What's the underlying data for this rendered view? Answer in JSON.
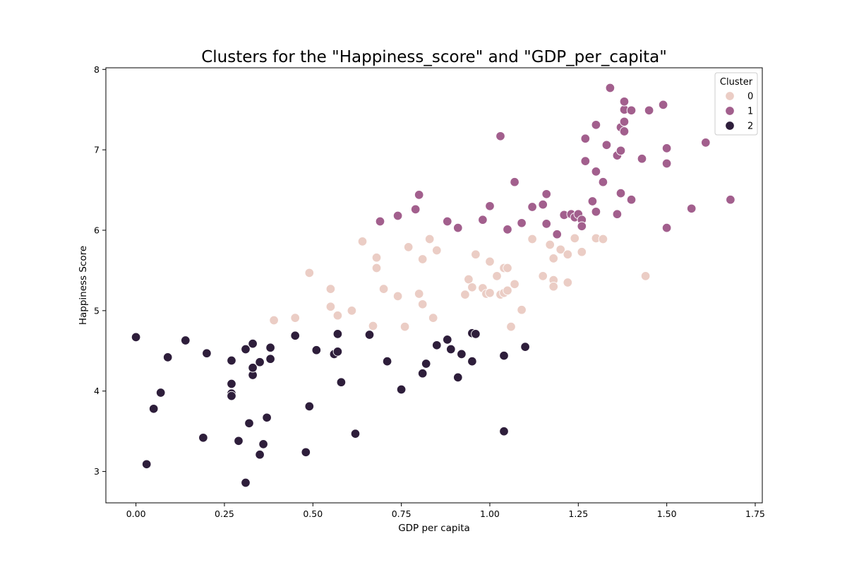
{
  "chart_data": {
    "type": "scatter",
    "title": "Clusters for the \"Happiness_score\" and \"GDP_per_capita\"",
    "xlabel": "GDP per capita",
    "ylabel": "Happiness Score",
    "xlim": [
      -0.085,
      1.77
    ],
    "ylim": [
      2.61,
      8.02
    ],
    "xticks": [
      "0.00",
      "0.25",
      "0.50",
      "0.75",
      "1.00",
      "1.25",
      "1.50",
      "1.75"
    ],
    "yticks": [
      "3",
      "4",
      "5",
      "6",
      "7",
      "8"
    ],
    "grid": false,
    "legend": {
      "title": "Cluster",
      "placement": "top-right"
    },
    "series": [
      {
        "name": "0",
        "color": "#ebcdc5",
        "points": [
          [
            0.39,
            4.88
          ],
          [
            0.45,
            4.91
          ],
          [
            0.49,
            5.47
          ],
          [
            0.55,
            5.05
          ],
          [
            0.55,
            5.27
          ],
          [
            0.57,
            4.94
          ],
          [
            0.61,
            5.0
          ],
          [
            0.64,
            5.86
          ],
          [
            0.67,
            4.81
          ],
          [
            0.68,
            5.66
          ],
          [
            0.68,
            5.53
          ],
          [
            0.7,
            5.27
          ],
          [
            0.74,
            5.18
          ],
          [
            0.76,
            4.8
          ],
          [
            0.77,
            5.79
          ],
          [
            0.8,
            5.21
          ],
          [
            0.81,
            5.64
          ],
          [
            0.81,
            5.08
          ],
          [
            0.83,
            5.89
          ],
          [
            0.84,
            4.91
          ],
          [
            0.85,
            5.75
          ],
          [
            0.93,
            5.2
          ],
          [
            0.94,
            5.39
          ],
          [
            0.95,
            5.29
          ],
          [
            0.96,
            5.7
          ],
          [
            0.98,
            5.28
          ],
          [
            0.99,
            5.21
          ],
          [
            1.0,
            5.22
          ],
          [
            1.0,
            5.61
          ],
          [
            1.02,
            5.43
          ],
          [
            1.03,
            5.2
          ],
          [
            1.04,
            5.53
          ],
          [
            1.04,
            5.22
          ],
          [
            1.05,
            5.53
          ],
          [
            1.05,
            5.25
          ],
          [
            1.06,
            4.8
          ],
          [
            1.07,
            5.33
          ],
          [
            1.09,
            5.01
          ],
          [
            1.12,
            5.89
          ],
          [
            1.15,
            5.43
          ],
          [
            1.17,
            5.82
          ],
          [
            1.18,
            5.65
          ],
          [
            1.18,
            5.38
          ],
          [
            1.18,
            5.3
          ],
          [
            1.2,
            5.76
          ],
          [
            1.22,
            5.7
          ],
          [
            1.22,
            5.35
          ],
          [
            1.24,
            5.9
          ],
          [
            1.26,
            5.73
          ],
          [
            1.3,
            5.9
          ],
          [
            1.32,
            5.89
          ],
          [
            1.44,
            5.43
          ]
        ]
      },
      {
        "name": "1",
        "color": "#a25f8d",
        "points": [
          [
            0.69,
            6.11
          ],
          [
            0.74,
            6.18
          ],
          [
            0.79,
            6.26
          ],
          [
            0.8,
            6.44
          ],
          [
            0.88,
            6.11
          ],
          [
            0.91,
            6.03
          ],
          [
            0.98,
            6.13
          ],
          [
            1.0,
            6.3
          ],
          [
            1.03,
            7.17
          ],
          [
            1.05,
            6.01
          ],
          [
            1.07,
            6.6
          ],
          [
            1.09,
            6.09
          ],
          [
            1.12,
            6.29
          ],
          [
            1.15,
            6.32
          ],
          [
            1.16,
            6.45
          ],
          [
            1.16,
            6.08
          ],
          [
            1.19,
            5.95
          ],
          [
            1.21,
            6.19
          ],
          [
            1.23,
            6.2
          ],
          [
            1.24,
            6.16
          ],
          [
            1.25,
            6.2
          ],
          [
            1.26,
            6.13
          ],
          [
            1.26,
            6.05
          ],
          [
            1.27,
            6.86
          ],
          [
            1.27,
            7.14
          ],
          [
            1.29,
            6.36
          ],
          [
            1.3,
            6.23
          ],
          [
            1.3,
            6.73
          ],
          [
            1.3,
            7.31
          ],
          [
            1.32,
            6.6
          ],
          [
            1.33,
            7.06
          ],
          [
            1.34,
            7.77
          ],
          [
            1.36,
            6.93
          ],
          [
            1.36,
            6.2
          ],
          [
            1.37,
            7.28
          ],
          [
            1.37,
            6.46
          ],
          [
            1.37,
            6.99
          ],
          [
            1.38,
            7.23
          ],
          [
            1.38,
            7.5
          ],
          [
            1.38,
            7.6
          ],
          [
            1.38,
            7.35
          ],
          [
            1.4,
            7.49
          ],
          [
            1.4,
            6.38
          ],
          [
            1.43,
            6.89
          ],
          [
            1.45,
            7.49
          ],
          [
            1.49,
            7.56
          ],
          [
            1.5,
            7.02
          ],
          [
            1.5,
            6.83
          ],
          [
            1.5,
            6.03
          ],
          [
            1.57,
            6.27
          ],
          [
            1.61,
            7.09
          ],
          [
            1.68,
            6.38
          ]
        ]
      },
      {
        "name": "2",
        "color": "#2e1e3b",
        "points": [
          [
            0.0,
            4.67
          ],
          [
            0.03,
            3.09
          ],
          [
            0.05,
            3.78
          ],
          [
            0.07,
            3.98
          ],
          [
            0.09,
            4.42
          ],
          [
            0.14,
            4.63
          ],
          [
            0.19,
            3.42
          ],
          [
            0.2,
            4.47
          ],
          [
            0.27,
            4.38
          ],
          [
            0.27,
            3.97
          ],
          [
            0.27,
            4.09
          ],
          [
            0.27,
            3.94
          ],
          [
            0.29,
            3.38
          ],
          [
            0.31,
            4.52
          ],
          [
            0.31,
            2.86
          ],
          [
            0.32,
            3.6
          ],
          [
            0.33,
            4.59
          ],
          [
            0.33,
            4.2
          ],
          [
            0.33,
            4.29
          ],
          [
            0.35,
            3.21
          ],
          [
            0.35,
            4.36
          ],
          [
            0.36,
            3.34
          ],
          [
            0.37,
            3.67
          ],
          [
            0.38,
            4.54
          ],
          [
            0.38,
            4.4
          ],
          [
            0.45,
            4.69
          ],
          [
            0.48,
            3.24
          ],
          [
            0.49,
            3.81
          ],
          [
            0.51,
            4.51
          ],
          [
            0.56,
            4.46
          ],
          [
            0.57,
            4.49
          ],
          [
            0.57,
            4.71
          ],
          [
            0.58,
            4.11
          ],
          [
            0.62,
            3.47
          ],
          [
            0.66,
            4.7
          ],
          [
            0.71,
            4.37
          ],
          [
            0.75,
            4.02
          ],
          [
            0.81,
            4.22
          ],
          [
            0.82,
            4.34
          ],
          [
            0.85,
            4.57
          ],
          [
            0.88,
            4.64
          ],
          [
            0.89,
            4.52
          ],
          [
            0.91,
            4.17
          ],
          [
            0.92,
            4.46
          ],
          [
            0.95,
            4.37
          ],
          [
            0.95,
            4.72
          ],
          [
            0.96,
            4.71
          ],
          [
            1.04,
            4.44
          ],
          [
            1.04,
            3.5
          ],
          [
            1.1,
            4.55
          ]
        ]
      }
    ]
  }
}
